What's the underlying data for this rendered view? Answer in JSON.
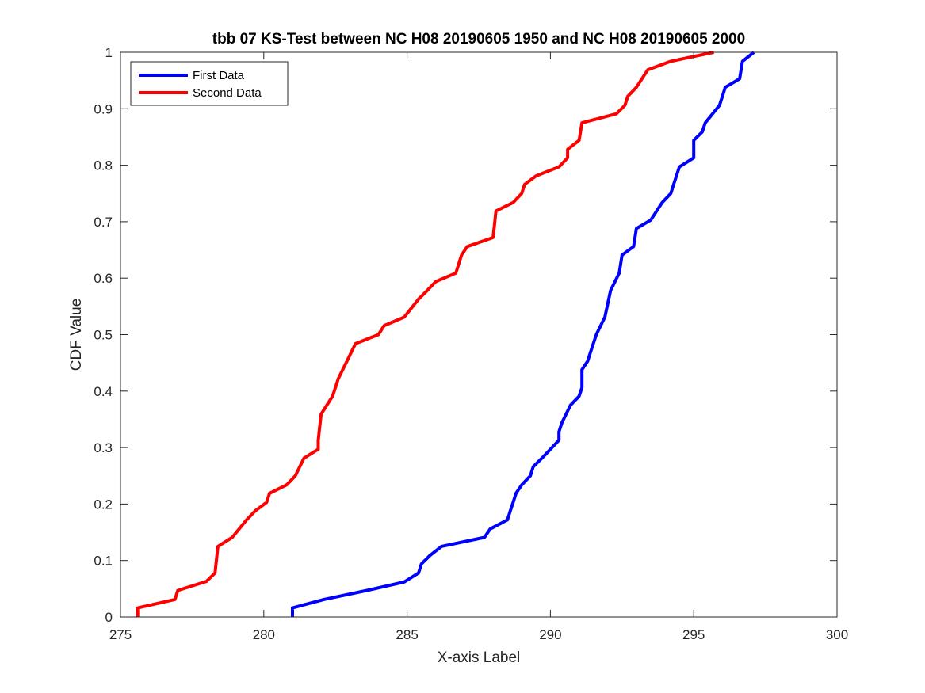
{
  "chart_data": {
    "type": "line",
    "title": "tbb 07 KS-Test between NC H08 20190605 1950 and NC H08 20190605 2000",
    "xlabel": "X-axis Label",
    "ylabel": "CDF Value",
    "xlim": [
      275,
      300
    ],
    "ylim": [
      0,
      1
    ],
    "xticks": [
      "275",
      "280",
      "285",
      "290",
      "295",
      "300"
    ],
    "yticks": [
      "0",
      "0.1",
      "0.2",
      "0.3",
      "0.4",
      "0.5",
      "0.6",
      "0.7",
      "0.8",
      "0.9",
      "1"
    ],
    "grid": false,
    "legend_position": "top-left",
    "series": [
      {
        "name": "First Data",
        "color": "#0000ff",
        "points": [
          [
            281.0,
            0.0
          ],
          [
            281.0,
            0.016
          ],
          [
            282.1,
            0.031
          ],
          [
            283.6,
            0.047
          ],
          [
            284.9,
            0.062
          ],
          [
            285.4,
            0.078
          ],
          [
            285.5,
            0.094
          ],
          [
            285.8,
            0.109
          ],
          [
            286.2,
            0.125
          ],
          [
            287.7,
            0.141
          ],
          [
            287.9,
            0.156
          ],
          [
            288.5,
            0.172
          ],
          [
            288.6,
            0.188
          ],
          [
            288.7,
            0.203
          ],
          [
            288.8,
            0.219
          ],
          [
            289.0,
            0.234
          ],
          [
            289.3,
            0.25
          ],
          [
            289.4,
            0.266
          ],
          [
            289.7,
            0.281
          ],
          [
            290.0,
            0.297
          ],
          [
            290.3,
            0.313
          ],
          [
            290.3,
            0.328
          ],
          [
            290.4,
            0.344
          ],
          [
            290.7,
            0.375
          ],
          [
            291.0,
            0.391
          ],
          [
            291.1,
            0.406
          ],
          [
            291.1,
            0.438
          ],
          [
            291.3,
            0.453
          ],
          [
            291.4,
            0.469
          ],
          [
            291.6,
            0.5
          ],
          [
            291.9,
            0.531
          ],
          [
            292.1,
            0.578
          ],
          [
            292.4,
            0.609
          ],
          [
            292.5,
            0.641
          ],
          [
            292.9,
            0.656
          ],
          [
            293.0,
            0.688
          ],
          [
            293.5,
            0.703
          ],
          [
            293.9,
            0.734
          ],
          [
            294.2,
            0.75
          ],
          [
            294.3,
            0.766
          ],
          [
            294.5,
            0.797
          ],
          [
            295.0,
            0.813
          ],
          [
            295.0,
            0.844
          ],
          [
            295.3,
            0.859
          ],
          [
            295.4,
            0.875
          ],
          [
            295.9,
            0.906
          ],
          [
            296.0,
            0.922
          ],
          [
            296.1,
            0.938
          ],
          [
            296.6,
            0.953
          ],
          [
            296.7,
            0.984
          ],
          [
            297.1,
            1.0
          ]
        ]
      },
      {
        "name": "Second Data",
        "color": "#ff0000",
        "points": [
          [
            275.6,
            0.0
          ],
          [
            275.6,
            0.016
          ],
          [
            276.9,
            0.031
          ],
          [
            277.0,
            0.047
          ],
          [
            278.0,
            0.063
          ],
          [
            278.3,
            0.078
          ],
          [
            278.4,
            0.125
          ],
          [
            278.9,
            0.141
          ],
          [
            279.4,
            0.172
          ],
          [
            279.7,
            0.188
          ],
          [
            280.1,
            0.203
          ],
          [
            280.2,
            0.219
          ],
          [
            280.8,
            0.234
          ],
          [
            281.1,
            0.25
          ],
          [
            281.4,
            0.281
          ],
          [
            281.9,
            0.297
          ],
          [
            281.9,
            0.313
          ],
          [
            282.0,
            0.359
          ],
          [
            282.4,
            0.391
          ],
          [
            282.6,
            0.422
          ],
          [
            282.9,
            0.453
          ],
          [
            283.2,
            0.484
          ],
          [
            284.0,
            0.5
          ],
          [
            284.2,
            0.516
          ],
          [
            284.9,
            0.531
          ],
          [
            285.4,
            0.563
          ],
          [
            285.7,
            0.578
          ],
          [
            286.0,
            0.594
          ],
          [
            286.7,
            0.609
          ],
          [
            286.9,
            0.641
          ],
          [
            287.1,
            0.656
          ],
          [
            288.0,
            0.672
          ],
          [
            288.1,
            0.719
          ],
          [
            288.7,
            0.734
          ],
          [
            289.0,
            0.75
          ],
          [
            289.1,
            0.766
          ],
          [
            289.5,
            0.781
          ],
          [
            290.3,
            0.797
          ],
          [
            290.6,
            0.813
          ],
          [
            290.6,
            0.828
          ],
          [
            291.0,
            0.844
          ],
          [
            291.1,
            0.875
          ],
          [
            292.3,
            0.891
          ],
          [
            292.6,
            0.906
          ],
          [
            292.7,
            0.922
          ],
          [
            293.0,
            0.938
          ],
          [
            293.4,
            0.969
          ],
          [
            294.2,
            0.984
          ],
          [
            295.7,
            1.0
          ]
        ]
      }
    ]
  }
}
